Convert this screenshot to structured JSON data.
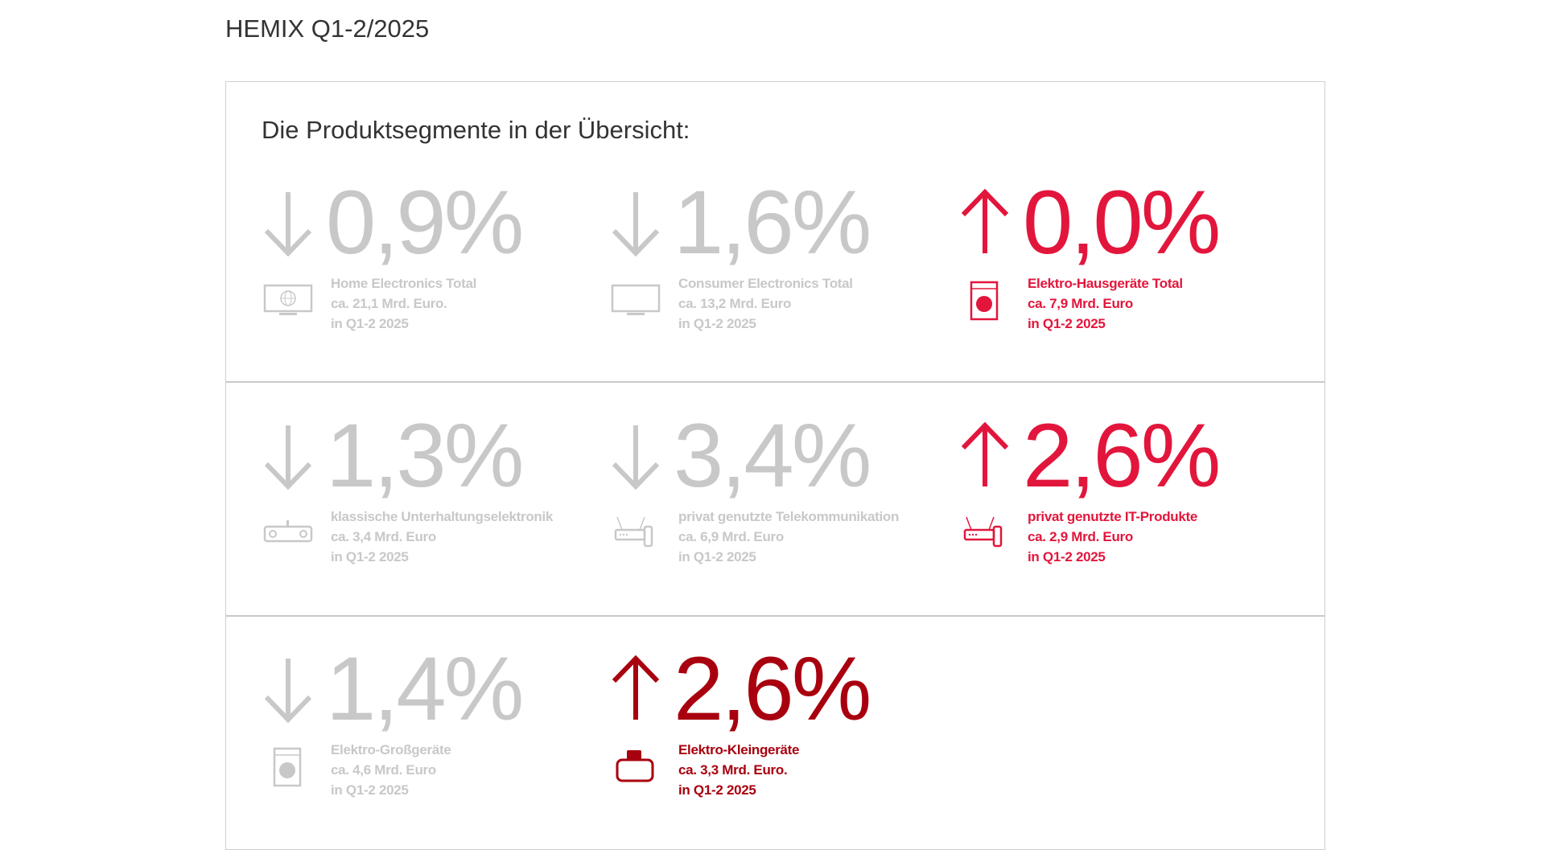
{
  "page_title": "HEMIX Q1-2/2025",
  "heading": "Die Produktsegmente in der Übersicht:",
  "colors": {
    "down": "#c8c8c8",
    "up": "#e2163c",
    "up_dark": "#a8000e"
  },
  "segments": [
    {
      "direction": "down",
      "change": "0,9%",
      "name": "Home Electronics Total",
      "value": "ca. 21,1 Mrd. Euro.",
      "period": "in Q1-2 2025",
      "icon": "tv-globe-icon"
    },
    {
      "direction": "down",
      "change": "1,6%",
      "name": "Consumer Electronics Total",
      "value": "ca. 13,2 Mrd. Euro",
      "period": "in Q1-2 2025",
      "icon": "tv-icon"
    },
    {
      "direction": "up",
      "change": "0,0%",
      "name": "Elektro-Hausgeräte Total",
      "value": "ca. 7,9 Mrd. Euro",
      "period": "in Q1-2 2025",
      "icon": "washing-machine-icon"
    },
    {
      "direction": "down",
      "change": "1,3%",
      "name": "klassische Unterhaltungselektronik",
      "value": "ca. 3,4 Mrd. Euro",
      "period": "in Q1-2 2025",
      "icon": "stereo-icon"
    },
    {
      "direction": "down",
      "change": "3,4%",
      "name": "privat genutzte Telekommunikation",
      "value": "ca. 6,9 Mrd. Euro",
      "period": "in Q1-2 2025",
      "icon": "router-phone-icon"
    },
    {
      "direction": "up",
      "change": "2,6%",
      "name": "privat genutzte IT-Produkte",
      "value": "ca. 2,9 Mrd. Euro",
      "period": "in Q1-2 2025",
      "icon": "router-phone-icon"
    },
    {
      "direction": "down",
      "change": "1,4%",
      "name": "Elektro-Großgeräte",
      "value": "ca. 4,6 Mrd. Euro",
      "period": "in Q1-2 2025",
      "icon": "washing-machine-icon"
    },
    {
      "direction": "up",
      "change": "2,6%",
      "name": "Elektro-Kleingeräte",
      "value": "ca. 3,3 Mrd. Euro.",
      "period": "in Q1-2 2025",
      "icon": "toaster-icon"
    }
  ]
}
